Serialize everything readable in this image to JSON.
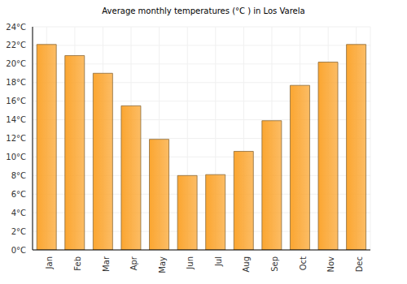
{
  "chart_data": {
    "type": "bar",
    "title": "Average monthly temperatures (°C ) in Los Varela",
    "categories": [
      "Jan",
      "Feb",
      "Mar",
      "Apr",
      "May",
      "Jun",
      "Jul",
      "Aug",
      "Sep",
      "Oct",
      "Nov",
      "Dec"
    ],
    "values": [
      22.1,
      20.9,
      19.0,
      15.5,
      11.9,
      8.0,
      8.1,
      10.6,
      13.9,
      17.7,
      20.2,
      22.1
    ],
    "color": "#fba631",
    "ylim": [
      0,
      24
    ],
    "yticks": [
      {
        "value": 0,
        "label": "0°C"
      },
      {
        "value": 2,
        "label": "2°C"
      },
      {
        "value": 4,
        "label": "4°C"
      },
      {
        "value": 6,
        "label": "6°C"
      },
      {
        "value": 8,
        "label": "8°C"
      },
      {
        "value": 10,
        "label": "10°C"
      },
      {
        "value": 12,
        "label": "12°C"
      },
      {
        "value": 14,
        "label": "14°C"
      },
      {
        "value": 16,
        "label": "16°C"
      },
      {
        "value": 18,
        "label": "18°C"
      },
      {
        "value": 20,
        "label": "20°C"
      },
      {
        "value": 22,
        "label": "22°C"
      },
      {
        "value": 24,
        "label": "24°C"
      }
    ],
    "grid": true
  }
}
